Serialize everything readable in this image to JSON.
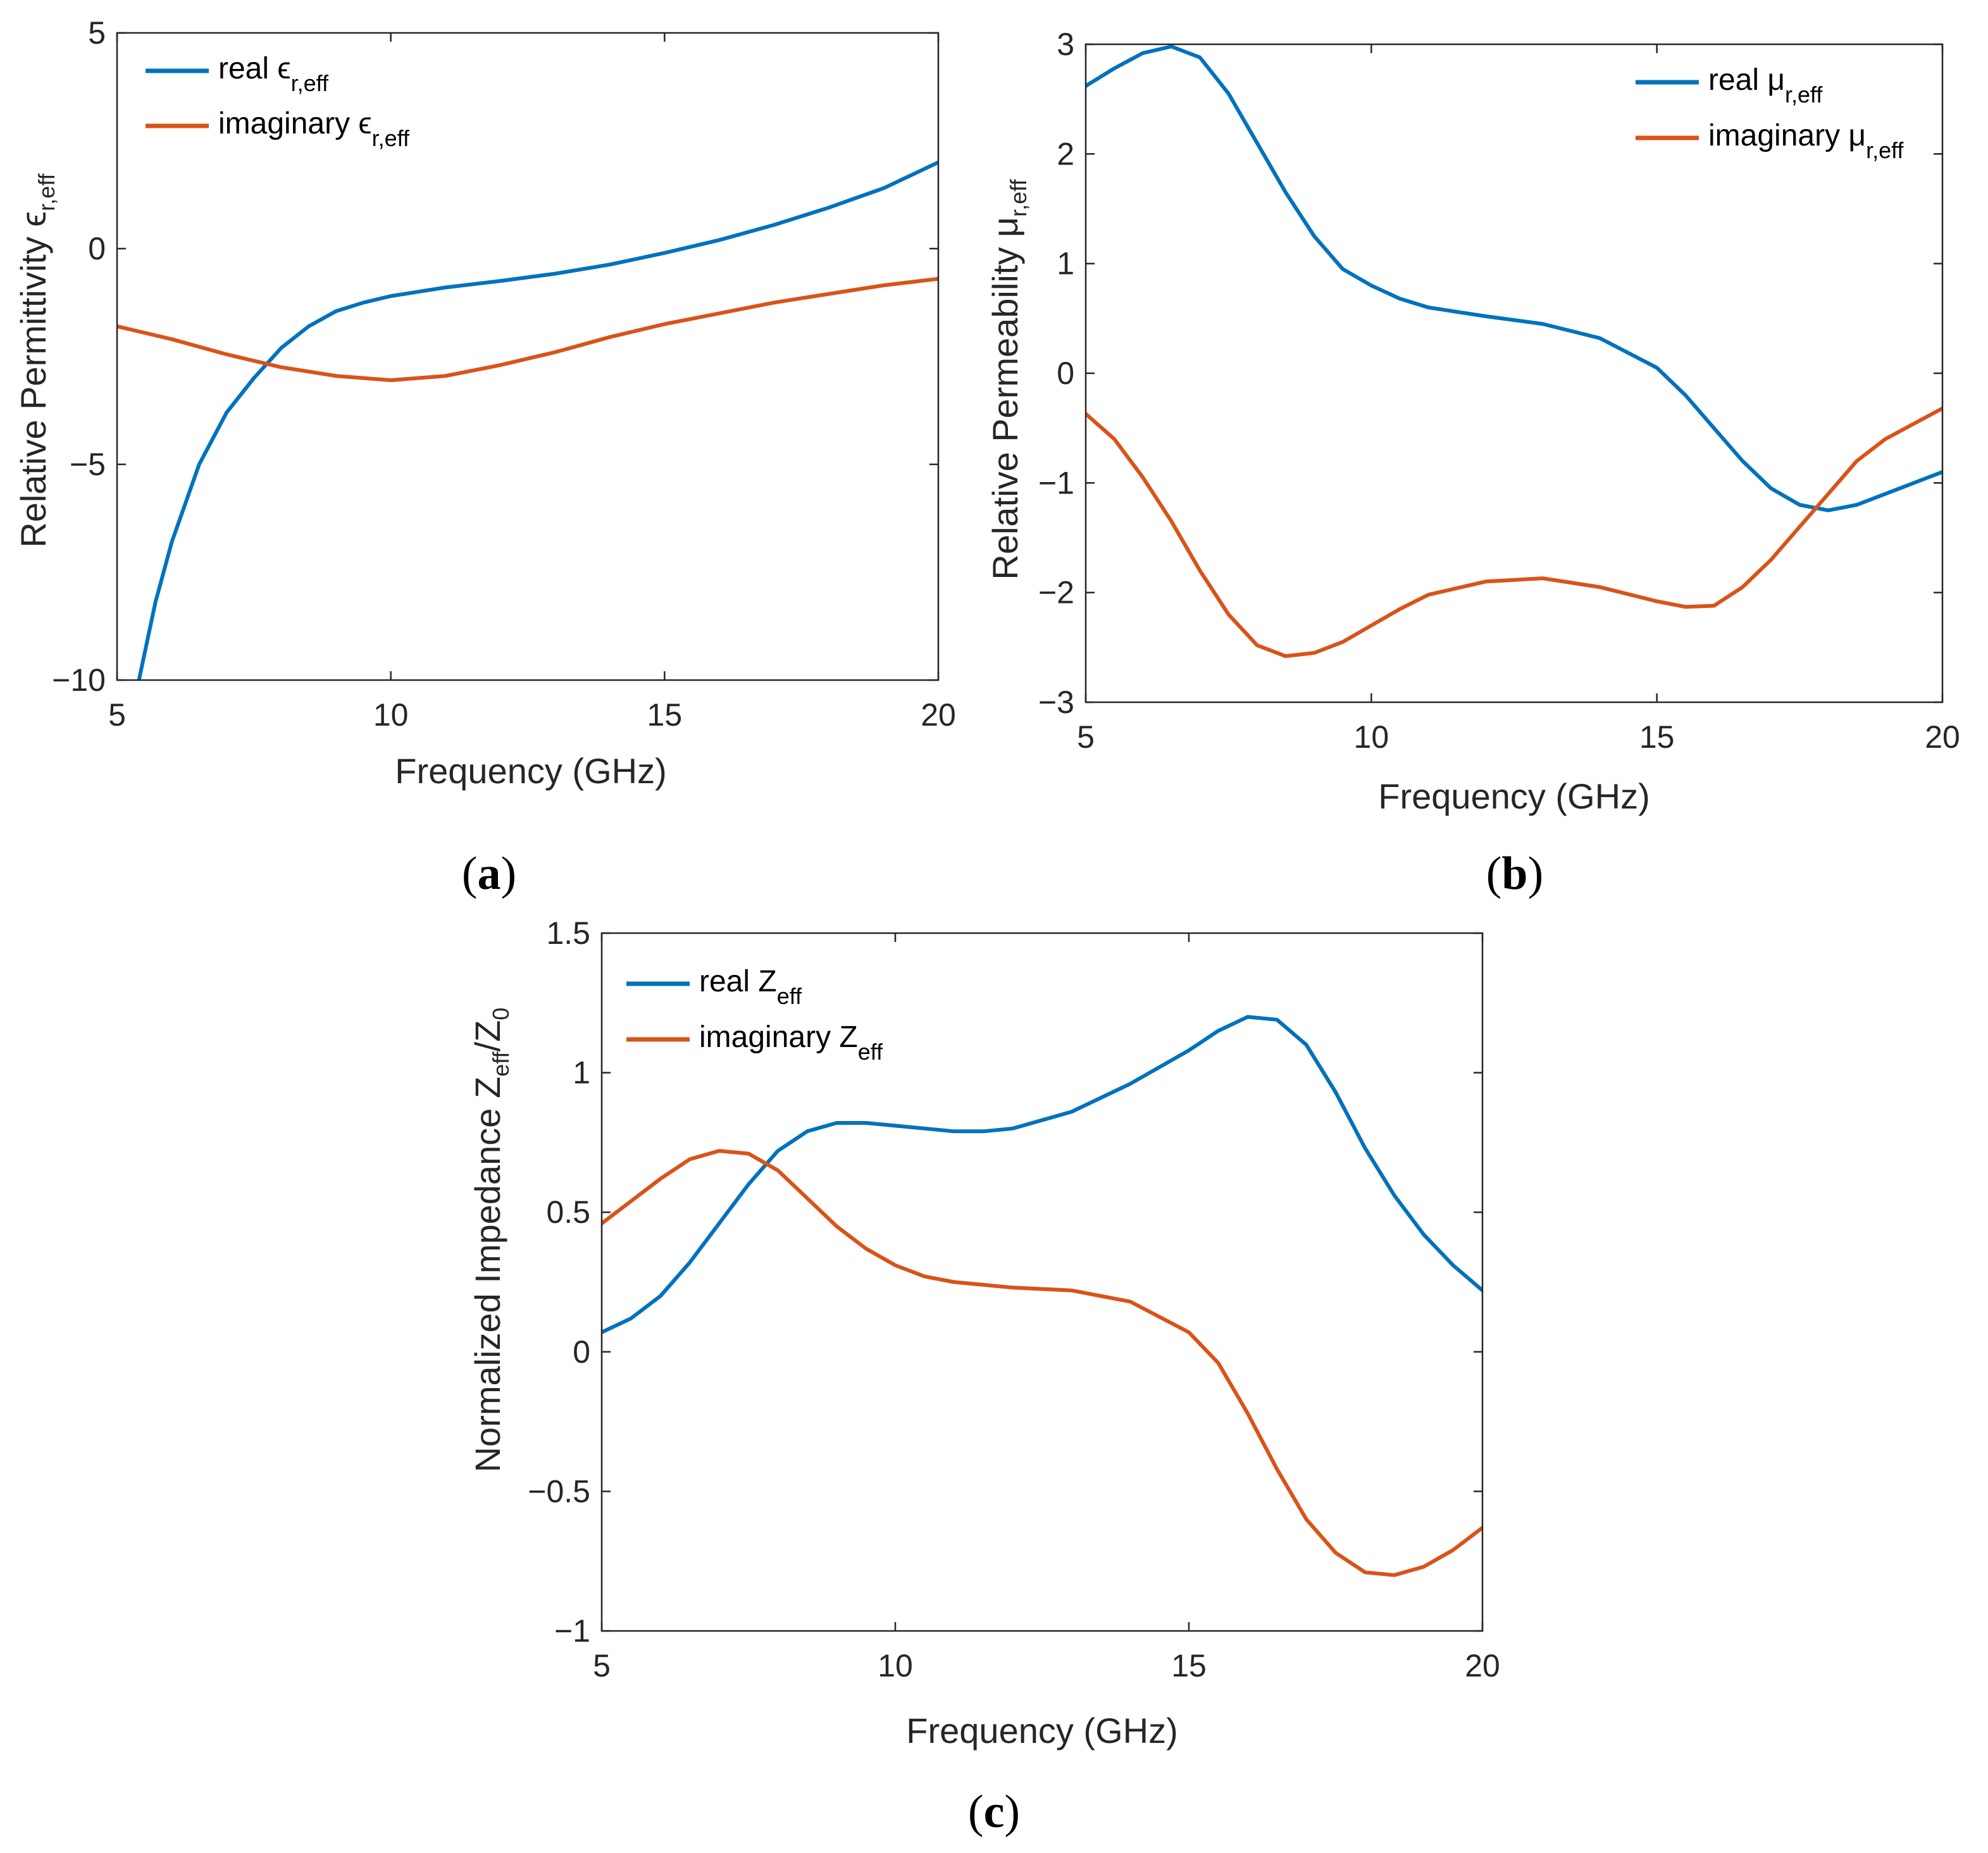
{
  "chart_data": [
    {
      "type": "line",
      "panel": "a",
      "xlabel": "Frequency (GHz)",
      "ylabel": "Relative Permittivity ϵr,eff",
      "ylabel_main": "Relative Permittivity ϵ",
      "ylabel_sub": "r,eff",
      "xlim": [
        5,
        20
      ],
      "ylim": [
        -10,
        5
      ],
      "xticks": [
        5,
        10,
        15,
        20
      ],
      "yticks": [
        -10,
        -5,
        0,
        5
      ],
      "xtick_labels": [
        "5",
        "10",
        "15",
        "20"
      ],
      "ytick_labels": [
        "−10",
        "−5",
        "0",
        "5"
      ],
      "legend_position": "top-left",
      "series": [
        {
          "name": "real ϵr,eff",
          "legend_main": "real ϵ",
          "legend_sub": "r,eff",
          "color": "#0072BD",
          "x": [
            5.4,
            5.7,
            6,
            6.5,
            7,
            7.5,
            8,
            8.5,
            9,
            9.5,
            10,
            10.5,
            11,
            12,
            13,
            14,
            15,
            16,
            17,
            18,
            19,
            20
          ],
          "y": [
            -10,
            -8.2,
            -6.8,
            -5.0,
            -3.8,
            -3.0,
            -2.3,
            -1.8,
            -1.45,
            -1.25,
            -1.1,
            -1.0,
            -0.9,
            -0.75,
            -0.58,
            -0.37,
            -0.1,
            0.2,
            0.55,
            0.95,
            1.4,
            2.0
          ]
        },
        {
          "name": "imaginary ϵr,eff",
          "legend_main": "imaginary ϵ",
          "legend_sub": "r,eff",
          "color": "#D95319",
          "x": [
            5,
            6,
            7,
            8,
            9,
            10,
            11,
            12,
            13,
            14,
            15,
            16,
            17,
            18,
            19,
            20
          ],
          "y": [
            -1.8,
            -2.1,
            -2.45,
            -2.75,
            -2.95,
            -3.05,
            -2.95,
            -2.7,
            -2.4,
            -2.05,
            -1.75,
            -1.5,
            -1.25,
            -1.05,
            -0.85,
            -0.7
          ]
        }
      ]
    },
    {
      "type": "line",
      "panel": "b",
      "xlabel": "Frequency (GHz)",
      "ylabel": "Relative Permeability μr,eff",
      "ylabel_main": "Relative Permeability μ",
      "ylabel_sub": "r,eff",
      "xlim": [
        5,
        20
      ],
      "ylim": [
        -3,
        3
      ],
      "xticks": [
        5,
        10,
        15,
        20
      ],
      "yticks": [
        -3,
        -2,
        -1,
        0,
        1,
        2,
        3
      ],
      "xtick_labels": [
        "5",
        "10",
        "15",
        "20"
      ],
      "ytick_labels": [
        "−3",
        "−2",
        "−1",
        "0",
        "1",
        "2",
        "3"
      ],
      "legend_position": "top-right",
      "series": [
        {
          "name": "real μr,eff",
          "legend_main": "real μ",
          "legend_sub": "r,eff",
          "color": "#0072BD",
          "x": [
            5,
            5.5,
            6,
            6.5,
            7,
            7.5,
            8,
            8.5,
            9,
            9.5,
            10,
            10.5,
            11,
            12,
            13,
            14,
            15,
            15.5,
            16,
            16.5,
            17,
            17.5,
            18,
            18.5,
            19,
            20
          ],
          "y": [
            2.62,
            2.78,
            2.92,
            2.98,
            2.88,
            2.55,
            2.1,
            1.65,
            1.25,
            0.95,
            0.8,
            0.68,
            0.6,
            0.52,
            0.45,
            0.32,
            0.05,
            -0.2,
            -0.5,
            -0.8,
            -1.05,
            -1.2,
            -1.25,
            -1.2,
            -1.1,
            -0.9
          ]
        },
        {
          "name": "imaginary μr,eff",
          "legend_main": "imaginary μ",
          "legend_sub": "r,eff",
          "color": "#D95319",
          "x": [
            5,
            5.5,
            6,
            6.5,
            7,
            7.5,
            8,
            8.5,
            9,
            9.5,
            10,
            10.5,
            11,
            12,
            13,
            14,
            15,
            15.5,
            16,
            16.5,
            17,
            17.5,
            18,
            18.5,
            19,
            20
          ],
          "y": [
            -0.37,
            -0.6,
            -0.95,
            -1.35,
            -1.8,
            -2.2,
            -2.48,
            -2.58,
            -2.55,
            -2.45,
            -2.3,
            -2.15,
            -2.02,
            -1.9,
            -1.87,
            -1.95,
            -2.08,
            -2.13,
            -2.12,
            -1.95,
            -1.7,
            -1.4,
            -1.1,
            -0.8,
            -0.6,
            -0.32
          ]
        }
      ]
    },
    {
      "type": "line",
      "panel": "c",
      "xlabel": "Frequency (GHz)",
      "ylabel": "Normalized Impedance Zeff/Z0",
      "ylabel_main": "Normalized Impedance Z",
      "ylabel_sub1": "eff",
      "ylabel_mid": "/Z",
      "ylabel_sub2": "0",
      "xlim": [
        5,
        20
      ],
      "ylim": [
        -1,
        1.5
      ],
      "xticks": [
        5,
        10,
        15,
        20
      ],
      "yticks": [
        -1,
        -0.5,
        0,
        0.5,
        1,
        1.5
      ],
      "xtick_labels": [
        "5",
        "10",
        "15",
        "20"
      ],
      "ytick_labels": [
        "−1",
        "−0.5",
        "0",
        "0.5",
        "1",
        "1.5"
      ],
      "legend_position": "top-left",
      "series": [
        {
          "name": "real Zeff",
          "legend_main": "real Z",
          "legend_sub": "eff",
          "color": "#0072BD",
          "x": [
            5,
            5.5,
            6,
            6.5,
            7,
            7.5,
            8,
            8.5,
            9,
            9.5,
            10,
            10.5,
            11,
            11.5,
            12,
            13,
            14,
            15,
            15.5,
            16,
            16.5,
            17,
            17.5,
            18,
            18.5,
            19,
            19.5,
            20
          ],
          "y": [
            0.07,
            0.12,
            0.2,
            0.32,
            0.46,
            0.6,
            0.72,
            0.79,
            0.82,
            0.82,
            0.81,
            0.8,
            0.79,
            0.79,
            0.8,
            0.86,
            0.96,
            1.08,
            1.15,
            1.2,
            1.19,
            1.1,
            0.93,
            0.73,
            0.56,
            0.42,
            0.31,
            0.22
          ]
        },
        {
          "name": "imaginary Zeff",
          "legend_main": "imaginary Z",
          "legend_sub": "eff",
          "color": "#D95319",
          "x": [
            5,
            5.5,
            6,
            6.5,
            7,
            7.5,
            8,
            8.5,
            9,
            9.5,
            10,
            10.5,
            11,
            11.5,
            12,
            13,
            14,
            15,
            15.5,
            16,
            16.5,
            17,
            17.5,
            18,
            18.5,
            19,
            19.5,
            20
          ],
          "y": [
            0.46,
            0.54,
            0.62,
            0.69,
            0.72,
            0.71,
            0.65,
            0.55,
            0.45,
            0.37,
            0.31,
            0.27,
            0.25,
            0.24,
            0.23,
            0.22,
            0.18,
            0.07,
            -0.04,
            -0.22,
            -0.42,
            -0.6,
            -0.72,
            -0.79,
            -0.8,
            -0.77,
            -0.71,
            -0.63
          ]
        }
      ]
    }
  ],
  "panel_labels": [
    "(a)",
    "(b)",
    "(c)"
  ],
  "panel_letters": [
    "a",
    "b",
    "c"
  ]
}
